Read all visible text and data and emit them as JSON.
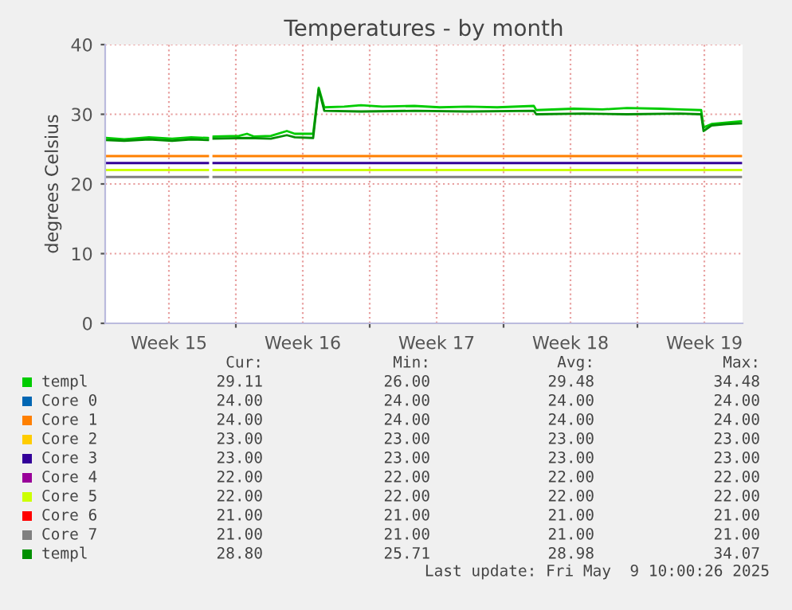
{
  "chart_data": {
    "type": "line",
    "title": "Temperatures - by month",
    "ylabel": "degrees Celsius",
    "xlim": [
      "2025-04-07T04:00",
      "2025-05-10T12:00"
    ],
    "ylim": [
      0,
      40
    ],
    "yticks": [
      0,
      10,
      20,
      30,
      40
    ],
    "xticks": [
      {
        "value": "2025-04-10T12:00",
        "label": "Week 15"
      },
      {
        "value": "2025-04-17T12:00",
        "label": "Week 16"
      },
      {
        "value": "2025-04-24T12:00",
        "label": "Week 17"
      },
      {
        "value": "2025-05-01T12:00",
        "label": "Week 18"
      },
      {
        "value": "2025-05-08T12:00",
        "label": "Week 19"
      },
      {
        "value": "2025-04-14T00:00",
        "label": null
      },
      {
        "value": "2025-04-21T00:00",
        "label": null
      },
      {
        "value": "2025-04-28T00:00",
        "label": null
      },
      {
        "value": "2025-05-05T00:00",
        "label": null
      }
    ],
    "grid": true,
    "legend": "bottom",
    "marker": "none",
    "line_style": "solid",
    "series": [
      {
        "name": "templ",
        "color": "#00cc00",
        "x": [
          "2025-04-07T05:00",
          "2025-04-08T04:00",
          "2025-04-09T11:00",
          "2025-04-10T16:00",
          "2025-04-11T16:00",
          "2025-04-12T13:00",
          "2025-04-12T16:00",
          "2025-04-12T20:00",
          "2025-04-14T04:00",
          "2025-04-14T14:00",
          "2025-04-14T23:00",
          "2025-04-15T20:00",
          "2025-04-16T16:00",
          "2025-04-17T02:00",
          "2025-04-18T01:00",
          "2025-04-18T08:00",
          "2025-04-18T15:00",
          "2025-04-19T16:00",
          "2025-04-20T13:00",
          "2025-04-21T16:00",
          "2025-04-23T08:00",
          "2025-04-24T16:00",
          "2025-04-26T03:00",
          "2025-04-27T16:00",
          "2025-04-29T14:00",
          "2025-04-29T17:00",
          "2025-05-01T16:00",
          "2025-05-03T04:00",
          "2025-05-04T11:00",
          "2025-05-06T04:00",
          "2025-05-07T05:00",
          "2025-05-08T08:00",
          "2025-05-08T11:00",
          "2025-05-08T21:00",
          "2025-05-09T16:00",
          "2025-05-10T10:00"
        ],
        "values": [
          26.6,
          26.4,
          26.7,
          26.5,
          26.7,
          26.6,
          null,
          26.8,
          26.9,
          27.2,
          26.8,
          26.9,
          27.6,
          27.2,
          27.2,
          33.8,
          31.0,
          31.1,
          31.3,
          31.1,
          31.2,
          31.0,
          31.1,
          31.0,
          31.2,
          30.6,
          30.8,
          30.7,
          30.9,
          30.8,
          30.7,
          30.6,
          28.1,
          28.6,
          28.8,
          29.0
        ]
      },
      {
        "name": "Core 0",
        "color": "#0066b3",
        "values": [
          null
        ]
      },
      {
        "name": "Core 1",
        "color": "#ff8000",
        "x": [
          "2025-04-07T05:00",
          "2025-04-12T13:00",
          "2025-04-12T16:00",
          "2025-04-12T20:00",
          "2025-05-10T10:00"
        ],
        "values": [
          24,
          24,
          null,
          24,
          24
        ]
      },
      {
        "name": "Core 2",
        "color": "#ffcc00",
        "values": [
          null
        ]
      },
      {
        "name": "Core 3",
        "color": "#330099",
        "x": [
          "2025-04-07T05:00",
          "2025-04-12T13:00",
          "2025-04-12T16:00",
          "2025-04-12T20:00",
          "2025-05-10T10:00"
        ],
        "values": [
          23,
          23,
          null,
          23,
          23
        ]
      },
      {
        "name": "Core 4",
        "color": "#990099",
        "values": [
          null
        ]
      },
      {
        "name": "Core 5",
        "color": "#ccff00",
        "x": [
          "2025-04-07T05:00",
          "2025-04-12T13:00",
          "2025-04-12T16:00",
          "2025-04-12T20:00",
          "2025-05-10T10:00"
        ],
        "values": [
          22,
          22,
          null,
          22,
          22
        ]
      },
      {
        "name": "Core 6",
        "color": "#ff0000",
        "values": [
          null
        ]
      },
      {
        "name": "Core 7",
        "color": "#808080",
        "x": [
          "2025-04-07T05:00",
          "2025-04-12T13:00",
          "2025-04-12T16:00",
          "2025-04-12T20:00",
          "2025-05-10T10:00"
        ],
        "values": [
          21,
          21,
          null,
          21,
          21
        ]
      },
      {
        "name": "templ",
        "color": "#008f00",
        "x": [
          "2025-04-07T05:00",
          "2025-04-08T04:00",
          "2025-04-09T11:00",
          "2025-04-10T16:00",
          "2025-04-11T16:00",
          "2025-04-12T13:00",
          "2025-04-12T16:00",
          "2025-04-12T20:00",
          "2025-04-14T14:00",
          "2025-04-15T20:00",
          "2025-04-16T16:00",
          "2025-04-17T02:00",
          "2025-04-18T01:00",
          "2025-04-18T08:00",
          "2025-04-18T15:00",
          "2025-04-20T13:00",
          "2025-04-23T08:00",
          "2025-04-26T03:00",
          "2025-04-29T14:00",
          "2025-04-29T17:00",
          "2025-05-02T04:00",
          "2025-05-04T11:00",
          "2025-05-07T05:00",
          "2025-05-08T08:00",
          "2025-05-08T11:00",
          "2025-05-08T21:00",
          "2025-05-09T16:00",
          "2025-05-10T10:00"
        ],
        "values": [
          26.3,
          26.2,
          26.4,
          26.2,
          26.4,
          26.3,
          null,
          26.5,
          26.6,
          26.5,
          27.0,
          26.7,
          26.6,
          33.6,
          30.5,
          30.4,
          30.5,
          30.4,
          30.5,
          30.0,
          30.1,
          30.0,
          30.1,
          30.0,
          27.6,
          28.4,
          28.6,
          28.7
        ]
      }
    ],
    "annotations": [
      "Cur:",
      "Min:",
      "Avg:",
      "Max:",
      "29.11",
      "26.00",
      "29.48",
      "34.48",
      "24.00",
      "24.00",
      "24.00",
      "24.00",
      "24.00",
      "24.00",
      "24.00",
      "24.00",
      "23.00",
      "23.00",
      "23.00",
      "23.00",
      "23.00",
      "23.00",
      "23.00",
      "23.00",
      "22.00",
      "22.00",
      "22.00",
      "22.00",
      "22.00",
      "22.00",
      "22.00",
      "22.00",
      "21.00",
      "21.00",
      "21.00",
      "21.00",
      "21.00",
      "21.00",
      "21.00",
      "21.00",
      "28.80",
      "25.71",
      "28.98",
      "34.07",
      "Last update: Fri May  9 10:00:26 2025"
    ]
  }
}
